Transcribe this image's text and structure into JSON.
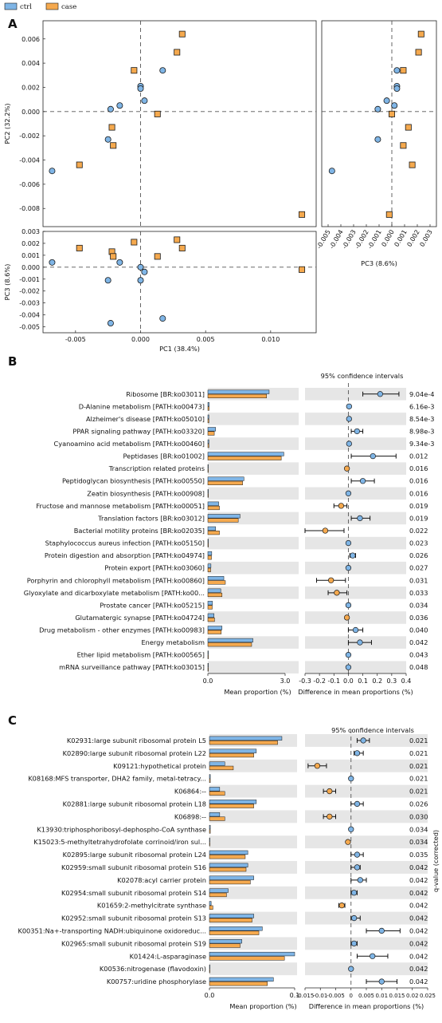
{
  "legend": [
    {
      "name": "ctrl",
      "color": "#7fb5e6"
    },
    {
      "name": "case",
      "color": "#f5a94e"
    }
  ],
  "colors": {
    "ctrl": "#7fb5e6",
    "case": "#f5a94e",
    "stroke": "#1a1a1a",
    "band": "#e6e6e6"
  },
  "chart_data": [
    {
      "panel": "A",
      "type": "scatter",
      "subplot": "PC1 vs PC2",
      "xlabel": "PC1 (38.4%)",
      "ylabel": "PC2 (32.2%)",
      "xlim": [
        -0.0075,
        0.0135
      ],
      "ylim": [
        -0.0095,
        0.0075
      ],
      "x_ticks": [
        "-0.005",
        "0.000",
        "0.005",
        "0.010"
      ],
      "y_ticks": [
        "0.006",
        "0.004",
        "0.002",
        "0.000",
        "-0.002",
        "-0.004",
        "-0.006",
        "-0.008"
      ],
      "series": [
        {
          "name": "ctrl",
          "x": [
            -0.0068,
            -0.0025,
            -0.0023,
            -0.0016,
            0.0,
            0.0,
            0.0003,
            0.0017
          ],
          "y": [
            -0.0049,
            -0.0023,
            0.0002,
            0.0005,
            0.0021,
            0.0019,
            0.0009,
            0.0034
          ]
        },
        {
          "name": "case",
          "x": [
            -0.0047,
            -0.0022,
            -0.0021,
            -0.0005,
            0.0013,
            0.0028,
            0.0032,
            0.0124
          ],
          "y": [
            -0.0044,
            -0.0013,
            -0.0028,
            0.0034,
            -0.0002,
            0.0049,
            0.0064,
            -0.0085
          ]
        }
      ]
    },
    {
      "panel": "A",
      "type": "scatter",
      "subplot": "PC3 vs PC2",
      "xlabel": "PC3 (8.6%)",
      "xlim": [
        -0.0055,
        0.0035
      ],
      "x_ticks": [
        "-0.005",
        "-0.004",
        "-0.003",
        "-0.002",
        "-0.001",
        "0.000",
        "0.001",
        "0.002",
        "0.003"
      ],
      "series": [
        {
          "name": "ctrl",
          "x": [
            -0.0047,
            -0.0011,
            -0.0011,
            0.0002,
            0.0004,
            0.0004,
            -0.0004,
            0.0004
          ],
          "y": [
            -0.0049,
            -0.0023,
            0.0002,
            0.0005,
            0.0021,
            0.0019,
            0.0009,
            0.0034
          ]
        },
        {
          "name": "case",
          "x": [
            0.0016,
            0.0013,
            0.0009,
            0.0009,
            0.0,
            0.0021,
            0.0023,
            -0.0002
          ],
          "y": [
            -0.0044,
            -0.0013,
            -0.0028,
            0.0034,
            -0.0002,
            0.0049,
            0.0064,
            -0.0085
          ]
        }
      ]
    },
    {
      "panel": "A",
      "type": "scatter",
      "subplot": "PC1 vs PC3",
      "xlabel": "PC1 (38.4%)",
      "ylabel": "PC3 (8.6%)",
      "ylim": [
        -0.0055,
        0.003
      ],
      "y_ticks": [
        "0.003",
        "0.002",
        "0.001",
        "0.000",
        "-0.001",
        "-0.002",
        "-0.003",
        "-0.004",
        "-0.005"
      ],
      "series": [
        {
          "name": "ctrl",
          "x": [
            -0.0068,
            -0.0025,
            -0.0023,
            -0.0016,
            0.0,
            0.0,
            0.0003,
            0.0017
          ],
          "y": [
            0.0004,
            -0.0011,
            -0.0047,
            0.0004,
            0.0,
            -0.0011,
            -0.0004,
            -0.0043
          ]
        },
        {
          "name": "case",
          "x": [
            -0.0047,
            -0.0022,
            -0.0021,
            -0.0005,
            0.0013,
            0.0028,
            0.0032,
            0.0124
          ],
          "y": [
            0.0016,
            0.0013,
            0.0009,
            0.0021,
            0.0009,
            0.0023,
            0.0016,
            -0.0002
          ]
        }
      ]
    },
    {
      "panel": "B",
      "type": "bar",
      "ci_title": "95% confidence intervals",
      "xlabel_left": "Mean proportion (%)",
      "xlabel_right": "Difference in mean proportions (%)",
      "left_ticks": [
        "0.0",
        "3.0"
      ],
      "left_lim": [
        0,
        3.0
      ],
      "right_ticks": [
        "-0.3",
        "-0.2",
        "-0.1",
        "0.0",
        "0.1",
        "0.2",
        "0.3",
        "0.4"
      ],
      "right_lim": [
        -0.3,
        0.4
      ],
      "rows": [
        {
          "label": "Ribosome [BR:ko03011]",
          "ctrl": 2.38,
          "case": 2.28,
          "diff": 0.22,
          "lo": 0.1,
          "hi": 0.35,
          "q": "9.04e-4"
        },
        {
          "label": "D-Alanine metabolism [PATH:ko00473]",
          "ctrl": 0.05,
          "case": 0.05,
          "diff": 0.005,
          "lo": 0.0,
          "hi": 0.01,
          "q": "6.16e-3"
        },
        {
          "label": "Alzheimer's disease [PATH:ko05010]",
          "ctrl": 0.04,
          "case": 0.04,
          "diff": 0.005,
          "lo": 0.0,
          "hi": 0.01,
          "q": "8.54e-3"
        },
        {
          "label": "PPAR signaling pathway [PATH:ko03320]",
          "ctrl": 0.3,
          "case": 0.25,
          "diff": 0.06,
          "lo": 0.02,
          "hi": 0.1,
          "q": "8.98e-3"
        },
        {
          "label": "Cyanoamino acid metabolism [PATH:ko00460]",
          "ctrl": 0.04,
          "case": 0.04,
          "diff": 0.005,
          "lo": 0.0,
          "hi": 0.01,
          "q": "9.34e-3"
        },
        {
          "label": "Peptidases [BR:ko01002]",
          "ctrl": 2.95,
          "case": 2.85,
          "diff": 0.17,
          "lo": 0.02,
          "hi": 0.33,
          "q": "0.012"
        },
        {
          "label": "Transcription related proteins",
          "ctrl": 0.0,
          "case": 0.0,
          "diff": -0.01,
          "lo": -0.01,
          "hi": -0.01,
          "q": "0.016"
        },
        {
          "label": "Peptidoglycan biosynthesis [PATH:ko00550]",
          "ctrl": 1.4,
          "case": 1.35,
          "diff": 0.1,
          "lo": 0.02,
          "hi": 0.18,
          "q": "0.016"
        },
        {
          "label": "Zeatin biosynthesis [PATH:ko00908]",
          "ctrl": 0.02,
          "case": 0.02,
          "diff": 0.0,
          "lo": 0.0,
          "hi": 0.0,
          "q": "0.016"
        },
        {
          "label": "Fructose and mannose metabolism [PATH:ko00051]",
          "ctrl": 0.42,
          "case": 0.45,
          "diff": -0.05,
          "lo": -0.1,
          "hi": -0.01,
          "q": "0.019"
        },
        {
          "label": "Translation factors [BR:ko03012]",
          "ctrl": 1.25,
          "case": 1.18,
          "diff": 0.08,
          "lo": 0.02,
          "hi": 0.15,
          "q": "0.019"
        },
        {
          "label": "Bacterial motility proteins [BR:ko02035]",
          "ctrl": 0.3,
          "case": 0.45,
          "diff": -0.16,
          "lo": -0.3,
          "hi": -0.03,
          "q": "0.022"
        },
        {
          "label": "Staphylococcus aureus infection [PATH:ko05150]",
          "ctrl": 0.02,
          "case": 0.02,
          "diff": 0.0,
          "lo": 0.0,
          "hi": 0.0,
          "q": "0.023"
        },
        {
          "label": "Protein digestion and absorption [PATH:ko04974]",
          "ctrl": 0.15,
          "case": 0.14,
          "diff": 0.03,
          "lo": 0.01,
          "hi": 0.05,
          "q": "0.026"
        },
        {
          "label": "Protein export [PATH:ko03060]",
          "ctrl": 0.12,
          "case": 0.11,
          "diff": 0.0,
          "lo": 0.0,
          "hi": 0.01,
          "q": "0.027"
        },
        {
          "label": "Porphyrin and chlorophyll metabolism [PATH:ko00860]",
          "ctrl": 0.62,
          "case": 0.68,
          "diff": -0.12,
          "lo": -0.22,
          "hi": -0.02,
          "q": "0.031"
        },
        {
          "label": "Glyoxylate and dicarboxylate metabolism [PATH:ko00...",
          "ctrl": 0.5,
          "case": 0.55,
          "diff": -0.08,
          "lo": -0.14,
          "hi": -0.01,
          "q": "0.033"
        },
        {
          "label": "Prostate cancer [PATH:ko05215]",
          "ctrl": 0.18,
          "case": 0.17,
          "diff": 0.0,
          "lo": 0.0,
          "hi": 0.01,
          "q": "0.034"
        },
        {
          "label": "Glutamatergic synapse [PATH:ko04724]",
          "ctrl": 0.24,
          "case": 0.26,
          "diff": -0.01,
          "lo": -0.02,
          "hi": -0.005,
          "q": "0.036"
        },
        {
          "label": "Drug metabolism - other enzymes [PATH:ko00983]",
          "ctrl": 0.55,
          "case": 0.52,
          "diff": 0.05,
          "lo": 0.0,
          "hi": 0.1,
          "q": "0.040"
        },
        {
          "label": "Energy metabolism",
          "ctrl": 1.75,
          "case": 1.7,
          "diff": 0.08,
          "lo": 0.0,
          "hi": 0.16,
          "q": "0.042"
        },
        {
          "label": "Ether lipid metabolism [PATH:ko00565]",
          "ctrl": 0.02,
          "case": 0.02,
          "diff": 0.0,
          "lo": 0.0,
          "hi": 0.0,
          "q": "0.043"
        },
        {
          "label": "mRNA surveillance pathway [PATH:ko03015]",
          "ctrl": 0.02,
          "case": 0.02,
          "diff": 0.0,
          "lo": 0.0,
          "hi": 0.0,
          "q": "0.048"
        }
      ]
    },
    {
      "panel": "C",
      "type": "bar",
      "ci_title": "95% confidence intervals",
      "xlabel_left": "Mean proportion (%)",
      "xlabel_right": "Difference in mean proportions (%)",
      "q_axis_label": "q-value (corrected)",
      "left_ticks": [
        "0.0",
        "0.1"
      ],
      "left_lim": [
        0,
        0.1
      ],
      "right_ticks": [
        "-0.015",
        "-0.01",
        "-0.005",
        "0",
        "0.005",
        "0.01",
        "0.015",
        "0.02",
        "0.025"
      ],
      "right_lim": [
        -0.015,
        0.025
      ],
      "rows": [
        {
          "label": "K02931:large subunit ribosomal protein L5",
          "ctrl": 0.085,
          "case": 0.08,
          "diff": 0.004,
          "lo": 0.002,
          "hi": 0.006,
          "q": "0.021"
        },
        {
          "label": "K02890:large subunit ribosomal protein L22",
          "ctrl": 0.055,
          "case": 0.052,
          "diff": 0.002,
          "lo": 0.001,
          "hi": 0.004,
          "q": "0.021"
        },
        {
          "label": "K09121:hypothetical protein",
          "ctrl": 0.018,
          "case": 0.028,
          "diff": -0.011,
          "lo": -0.014,
          "hi": -0.008,
          "q": "0.021"
        },
        {
          "label": "K08168:MFS transporter, DHA2 family, metal-tetracy...",
          "ctrl": 0.001,
          "case": 0.001,
          "diff": 0.0,
          "lo": 0.0,
          "hi": 0.0,
          "q": "0.021"
        },
        {
          "label": "K06864:--",
          "ctrl": 0.012,
          "case": 0.018,
          "diff": -0.007,
          "lo": -0.009,
          "hi": -0.005,
          "q": "0.021"
        },
        {
          "label": "K02881:large subunit ribosomal protein L18",
          "ctrl": 0.055,
          "case": 0.052,
          "diff": 0.002,
          "lo": 0.0,
          "hi": 0.004,
          "q": "0.026"
        },
        {
          "label": "K06898:--",
          "ctrl": 0.012,
          "case": 0.018,
          "diff": -0.007,
          "lo": -0.009,
          "hi": -0.005,
          "q": "0.030"
        },
        {
          "label": "K13930:triphosphoribosyl-dephospho-CoA synthase",
          "ctrl": 0.001,
          "case": 0.001,
          "diff": 0.0,
          "lo": 0.0,
          "hi": 0.0,
          "q": "0.034"
        },
        {
          "label": "K15023:5-methyltetrahydrofolate corrinoid/iron sul...",
          "ctrl": 0.0,
          "case": 0.0,
          "diff": -0.001,
          "lo": -0.001,
          "hi": -0.001,
          "q": "0.034"
        },
        {
          "label": "K02895:large subunit ribosomal protein L24",
          "ctrl": 0.045,
          "case": 0.042,
          "diff": 0.002,
          "lo": 0.0,
          "hi": 0.004,
          "q": "0.035"
        },
        {
          "label": "K02959:small subunit ribosomal protein S16",
          "ctrl": 0.045,
          "case": 0.043,
          "diff": 0.002,
          "lo": 0.0,
          "hi": 0.003,
          "q": "0.042"
        },
        {
          "label": "K02078:acyl carrier protein",
          "ctrl": 0.052,
          "case": 0.048,
          "diff": 0.003,
          "lo": 0.0,
          "hi": 0.005,
          "q": "0.042"
        },
        {
          "label": "K02954:small subunit ribosomal protein S14",
          "ctrl": 0.022,
          "case": 0.02,
          "diff": 0.001,
          "lo": 0.0,
          "hi": 0.002,
          "q": "0.042"
        },
        {
          "label": "K01659:2-methylcitrate synthase",
          "ctrl": 0.002,
          "case": 0.004,
          "diff": -0.003,
          "lo": -0.004,
          "hi": -0.002,
          "q": "0.042"
        },
        {
          "label": "K02952:small subunit ribosomal protein S13",
          "ctrl": 0.052,
          "case": 0.05,
          "diff": 0.001,
          "lo": 0.0,
          "hi": 0.003,
          "q": "0.042"
        },
        {
          "label": "K00351:Na+-transporting NADH:ubiquinone oxidoreduc...",
          "ctrl": 0.062,
          "case": 0.058,
          "diff": 0.01,
          "lo": 0.005,
          "hi": 0.016,
          "q": "0.042"
        },
        {
          "label": "K02965:small subunit ribosomal protein S19",
          "ctrl": 0.038,
          "case": 0.036,
          "diff": 0.001,
          "lo": 0.0,
          "hi": 0.002,
          "q": "0.042"
        },
        {
          "label": "K01424:L-asparaginase",
          "ctrl": 0.1,
          "case": 0.088,
          "diff": 0.007,
          "lo": 0.002,
          "hi": 0.012,
          "q": "0.042"
        },
        {
          "label": "K00536:nitrogenase (flavodoxin)",
          "ctrl": 0.0,
          "case": 0.0,
          "diff": 0.0,
          "lo": 0.0,
          "hi": 0.0,
          "q": "0.042"
        },
        {
          "label": "K00757:uridine phosphorylase",
          "ctrl": 0.075,
          "case": 0.068,
          "diff": 0.01,
          "lo": 0.005,
          "hi": 0.015,
          "q": "0.042"
        }
      ]
    }
  ]
}
